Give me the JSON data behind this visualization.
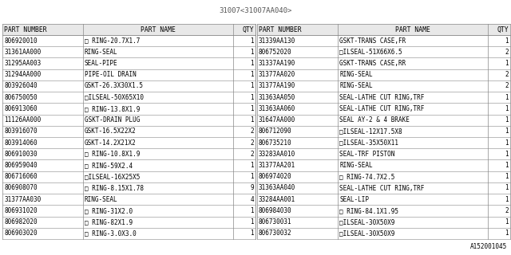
{
  "title": "31007<31007AA040>",
  "footer": "A152001045",
  "background_color": "#ffffff",
  "header_bg_color": "#e8e8e8",
  "row_bg_color": "#ffffff",
  "left_table": {
    "headers": [
      "PART NUMBER",
      "PART NAME",
      "QTY"
    ],
    "rows": [
      [
        "806920010",
        "□ RING-20.7X1.7",
        "1"
      ],
      [
        "31361AA000",
        "RING-SEAL",
        "1"
      ],
      [
        "31295AA003",
        "SEAL-PIPE",
        "1"
      ],
      [
        "31294AA000",
        "PIPE-OIL DRAIN",
        "1"
      ],
      [
        "803926040",
        "GSKT-26.3X30X1.5",
        "1"
      ],
      [
        "806750050",
        "□ILSEAL-50X65X10",
        "1"
      ],
      [
        "806913060",
        "□ RING-13.8X1.9",
        "1"
      ],
      [
        "11126AA000",
        "GSKT-DRAIN PLUG",
        "1"
      ],
      [
        "803916070",
        "GSKT-16.5X22X2",
        "2"
      ],
      [
        "803914060",
        "GSKT-14.2X21X2",
        "2"
      ],
      [
        "806910030",
        "□ RING-10.8X1.9",
        "2"
      ],
      [
        "806959040",
        "□ RING-59X2.4",
        "1"
      ],
      [
        "806716060",
        "□ILSEAL-16X25X5",
        "1"
      ],
      [
        "806908070",
        "□ RING-8.15X1.78",
        "9"
      ],
      [
        "31377AA030",
        "RING-SEAL",
        "4"
      ],
      [
        "806931020",
        "□ RING-31X2.0",
        "1"
      ],
      [
        "806982020",
        "□ RING-82X1.9",
        "1"
      ],
      [
        "806903020",
        "□ RING-3.0X3.0",
        "1"
      ]
    ]
  },
  "right_table": {
    "headers": [
      "PART NUMBER",
      "PART NAME",
      "QTY"
    ],
    "rows": [
      [
        "31339AA130",
        "GSKT-TRANS CASE,FR",
        "1"
      ],
      [
        "806752020",
        "□ILSEAL-51X66X6.5",
        "2"
      ],
      [
        "31337AA190",
        "GSKT-TRANS CASE,RR",
        "1"
      ],
      [
        "31377AA020",
        "RING-SEAL",
        "2"
      ],
      [
        "31377AA190",
        "RING-SEAL",
        "2"
      ],
      [
        "31363AA050",
        "SEAL-LATHE CUT RING,TRF",
        "1"
      ],
      [
        "31363AA060",
        "SEAL-LATHE CUT RING,TRF",
        "1"
      ],
      [
        "31647AA000",
        "SEAL AY-2 & 4 BRAKE",
        "1"
      ],
      [
        "806712090",
        "□ILSEAL-12X17.5X8",
        "1"
      ],
      [
        "806735210",
        "□ILSEAL-35X50X11",
        "1"
      ],
      [
        "33283AA010",
        "SEAL-TRF PISTON",
        "1"
      ],
      [
        "31377AA201",
        "RING-SEAL",
        "1"
      ],
      [
        "806974020",
        "□ RING-74.7X2.5",
        "1"
      ],
      [
        "31363AA040",
        "SEAL-LATHE CUT RING,TRF",
        "1"
      ],
      [
        "33284AA001",
        "SEAL-LIP",
        "1"
      ],
      [
        "806984030",
        "□ RING-84.1X1.95",
        "2"
      ],
      [
        "806730031",
        "□ILSEAL-30X50X9",
        "1"
      ],
      [
        "806730032",
        "□ILSEAL-30X50X9",
        "1"
      ]
    ]
  },
  "font_size": 5.5,
  "header_font_size": 5.8,
  "title_font_size": 6.5,
  "footer_font_size": 5.5,
  "line_color": "#888888",
  "text_color": "#000000",
  "title_color": "#555555"
}
